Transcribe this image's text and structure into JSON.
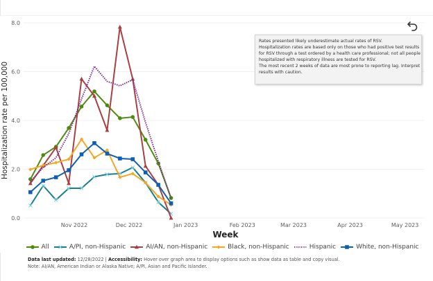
{
  "chart_data": {
    "type": "line",
    "title": "",
    "xlabel": "Week",
    "ylabel": "Hospitalization rate per 100,000",
    "ylim": [
      0,
      8
    ],
    "yticks": [
      "0.0",
      "2.0",
      "4.0",
      "6.0",
      "8.0"
    ],
    "ytick_values": [
      0,
      2,
      4,
      6,
      8
    ],
    "xlim": [
      "2022-10-01",
      "2023-05-10"
    ],
    "xticks": [
      {
        "label": "Nov 2022",
        "date": "2022-11-01"
      },
      {
        "label": "Dec 2022",
        "date": "2022-12-01"
      },
      {
        "label": "Jan 2023",
        "date": "2023-01-01"
      },
      {
        "label": "Feb 2023",
        "date": "2023-02-01"
      },
      {
        "label": "Mar 2023",
        "date": "2023-03-01"
      },
      {
        "label": "Apr 2023",
        "date": "2023-04-01"
      },
      {
        "label": "May 2023",
        "date": "2023-05-01"
      }
    ],
    "grid": true,
    "legend_position": "bottom",
    "x": [
      "2022-10-08",
      "2022-10-15",
      "2022-10-22",
      "2022-10-29",
      "2022-11-05",
      "2022-11-12",
      "2022-11-19",
      "2022-11-26",
      "2022-12-03",
      "2022-12-10",
      "2022-12-17",
      "2022-12-24"
    ],
    "series": [
      {
        "name": "All",
        "color": "#4f8a10",
        "marker": "circle",
        "dash": "solid",
        "values": [
          1.59,
          2.58,
          2.92,
          3.69,
          4.57,
          5.19,
          4.62,
          4.09,
          4.14,
          3.21,
          2.24,
          0.82
        ]
      },
      {
        "name": "A/PI, non-Hispanic",
        "color": "#13808b",
        "marker": "x",
        "dash": "solid",
        "values": [
          0.51,
          1.33,
          0.74,
          1.22,
          1.22,
          1.69,
          1.79,
          1.82,
          2.07,
          1.45,
          0.65,
          0.17
        ]
      },
      {
        "name": "AI/AN, non-Hispanic",
        "color": "#a83f43",
        "marker": "triangle",
        "dash": "solid",
        "values": [
          1.42,
          2.15,
          2.89,
          1.42,
          5.7,
          5.0,
          3.6,
          7.83,
          5.7,
          2.13,
          1.36,
          0.0
        ]
      },
      {
        "name": "Black, non-Hispanic",
        "color": "#f5a623",
        "marker": "diamond",
        "dash": "solid",
        "values": [
          1.99,
          2.16,
          2.27,
          2.41,
          3.23,
          2.47,
          2.78,
          1.67,
          1.82,
          1.45,
          0.88,
          0.54
        ]
      },
      {
        "name": "Hispanic",
        "color": "#7b2a8c",
        "marker": "none",
        "dash": "dotted",
        "values": [
          1.5,
          2.07,
          2.47,
          3.46,
          4.88,
          6.22,
          5.6,
          5.42,
          5.67,
          3.92,
          2.33,
          0.8
        ]
      },
      {
        "name": "White, non-Hispanic",
        "color": "#0f5fb4",
        "marker": "square",
        "dash": "solid",
        "values": [
          1.06,
          1.53,
          1.67,
          1.96,
          2.61,
          3.07,
          2.64,
          2.44,
          2.41,
          1.87,
          1.36,
          0.6
        ]
      }
    ]
  },
  "note": {
    "lines": [
      "Rates presented likely underestimate actual rates of RSV.",
      "Hospitalization rates are based only on those who had positive test results",
      "for RSV through a test ordered by a health care professional; not all people",
      "hospitalized with respiratory illness are tested for RSV.",
      "The most recent 2 weeks of data are most prone to reporting lag. Interpret",
      "results with caution."
    ]
  },
  "reset_button": {
    "icon": "undo-arrow-icon",
    "label": "Reset"
  },
  "footer": {
    "updated_label": "Data last updated:",
    "updated_value": " 12/28/2022 | ",
    "accessibility_label": "Accessibility:",
    "accessibility_text": " Hover over graph area to display options such as show data as table and copy visual.",
    "note": "Note: AI/AN, American Indian or Alaska Native; A/PI, Asian and Pacific Islander."
  }
}
